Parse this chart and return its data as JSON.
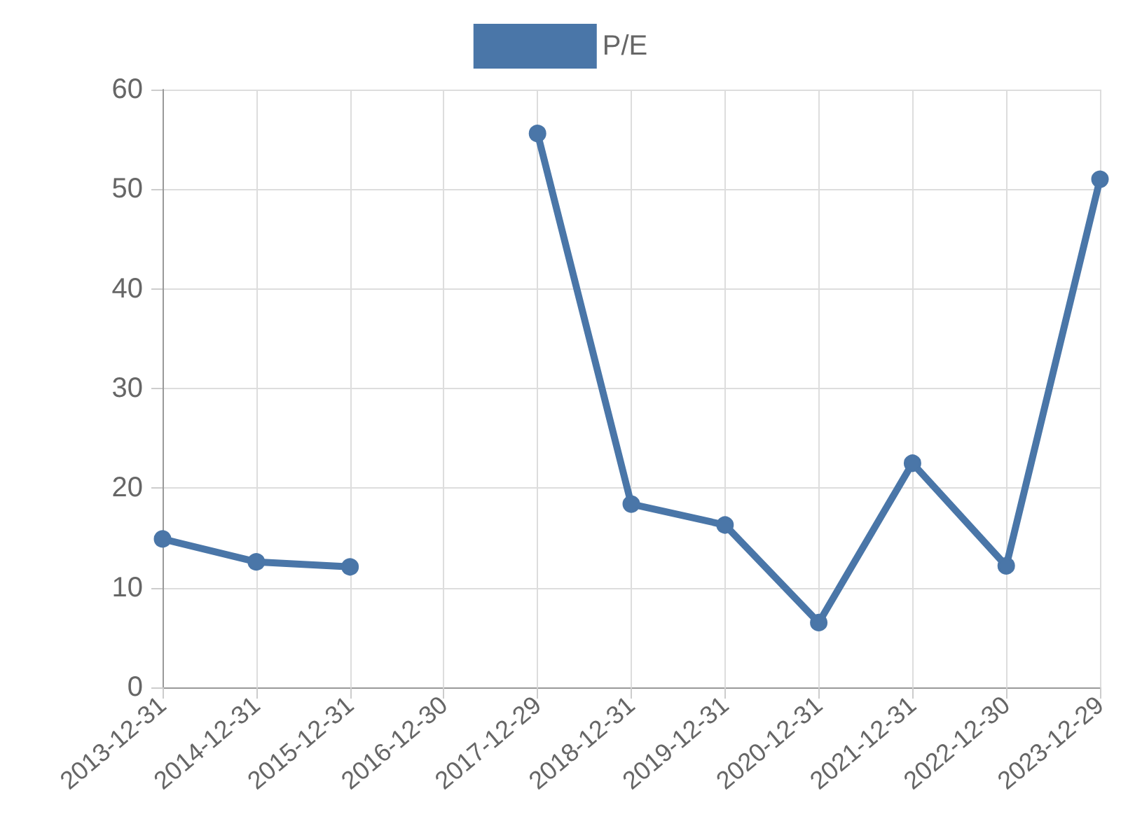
{
  "chart_data": {
    "type": "line",
    "categories": [
      "2013-12-31",
      "2014-12-31",
      "2015-12-31",
      "2016-12-30",
      "2017-12-29",
      "2018-12-31",
      "2019-12-31",
      "2020-12-31",
      "2021-12-31",
      "2022-12-30",
      "2023-12-29"
    ],
    "series": [
      {
        "name": "P/E",
        "color": "#4a76a8",
        "values": [
          14.9,
          12.6,
          12.1,
          null,
          55.6,
          18.4,
          16.3,
          6.5,
          22.5,
          12.2,
          51.0
        ]
      }
    ],
    "ylim": [
      0,
      60
    ],
    "yticks": [
      0,
      10,
      20,
      30,
      40,
      50,
      60
    ],
    "grid": true,
    "legend": "top",
    "marker": "circle",
    "line_style": "solid"
  }
}
